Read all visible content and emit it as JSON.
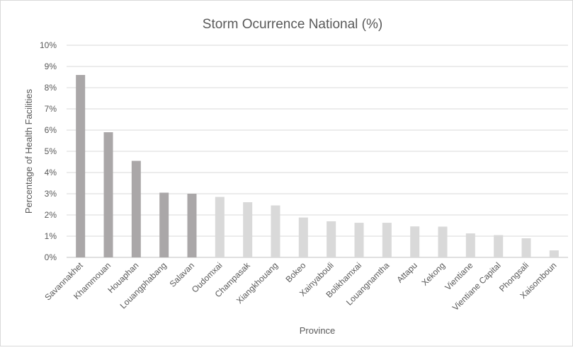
{
  "chart_data": {
    "type": "bar",
    "title": "Storm Ocurrence National (%)",
    "xlabel": "Province",
    "ylabel": "Percentage of Health Facilities",
    "categories": [
      "Savannakhet",
      "Khammouan",
      "Houaphan",
      "Louangphabang",
      "Salavan",
      "Oudomxai",
      "Champasak",
      "Xiangkhouang",
      "Bokeo",
      "Xainyabouli",
      "Bolikhamxai",
      "Louangnamtha",
      "Attapu",
      "Xekong",
      "Vientiane",
      "Vientiane Capital",
      "Phongsali",
      "Xaisomboun"
    ],
    "values": [
      8.6,
      5.9,
      4.55,
      3.05,
      3.0,
      2.85,
      2.6,
      2.45,
      1.88,
      1.7,
      1.63,
      1.63,
      1.46,
      1.45,
      1.13,
      1.05,
      0.9,
      0.33
    ],
    "ylim": [
      0,
      10
    ],
    "yticks": [
      "0%",
      "1%",
      "2%",
      "3%",
      "4%",
      "5%",
      "6%",
      "7%",
      "8%",
      "9%",
      "10%"
    ],
    "grid": true,
    "legend": "none",
    "colors": {
      "highlight": "#aaa7a8",
      "other": "#d9d9d9",
      "gridline": "#d9d9d9",
      "axis": "#bfbfbf",
      "text": "#595959"
    },
    "highlight_count": 5
  }
}
